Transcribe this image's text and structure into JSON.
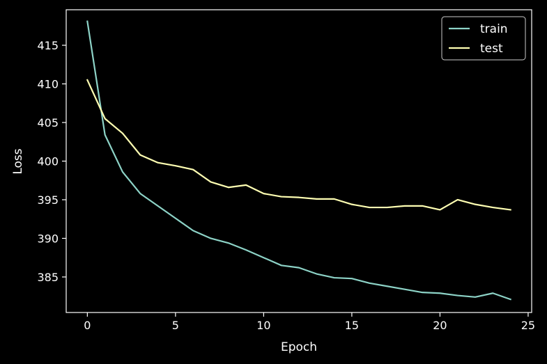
{
  "chart_data": {
    "type": "line",
    "title": "",
    "xlabel": "Epoch",
    "ylabel": "Loss",
    "xlim": [
      -1.2,
      25.2
    ],
    "ylim": [
      380.4,
      419.6
    ],
    "xticks": [
      0,
      5,
      10,
      15,
      20,
      25
    ],
    "yticks": [
      385,
      390,
      395,
      400,
      405,
      410,
      415
    ],
    "grid": false,
    "legend_position": "top-right",
    "background": "#000000",
    "series": [
      {
        "name": "train",
        "color": "#8dd3c7",
        "x": [
          0,
          1,
          2,
          3,
          4,
          5,
          6,
          7,
          8,
          9,
          10,
          11,
          12,
          13,
          14,
          15,
          16,
          17,
          18,
          19,
          20,
          21,
          22,
          23,
          24
        ],
        "values": [
          418.1,
          403.4,
          398.6,
          395.8,
          394.2,
          392.6,
          391.0,
          390.0,
          389.4,
          388.5,
          387.5,
          386.5,
          386.2,
          385.4,
          384.9,
          384.8,
          384.2,
          383.8,
          383.4,
          383.0,
          382.9,
          382.6,
          382.4,
          382.9,
          382.1
        ]
      },
      {
        "name": "test",
        "color": "#ffffb3",
        "x": [
          0,
          1,
          2,
          3,
          4,
          5,
          6,
          7,
          8,
          9,
          10,
          11,
          12,
          13,
          14,
          15,
          16,
          17,
          18,
          19,
          20,
          21,
          22,
          23,
          24
        ],
        "values": [
          410.5,
          405.5,
          403.6,
          400.8,
          399.8,
          399.4,
          398.9,
          397.3,
          396.6,
          396.9,
          395.8,
          395.4,
          395.3,
          395.1,
          395.1,
          394.4,
          394.0,
          394.0,
          394.2,
          394.2,
          393.7,
          395.0,
          394.4,
          394.0,
          393.7
        ]
      }
    ]
  }
}
